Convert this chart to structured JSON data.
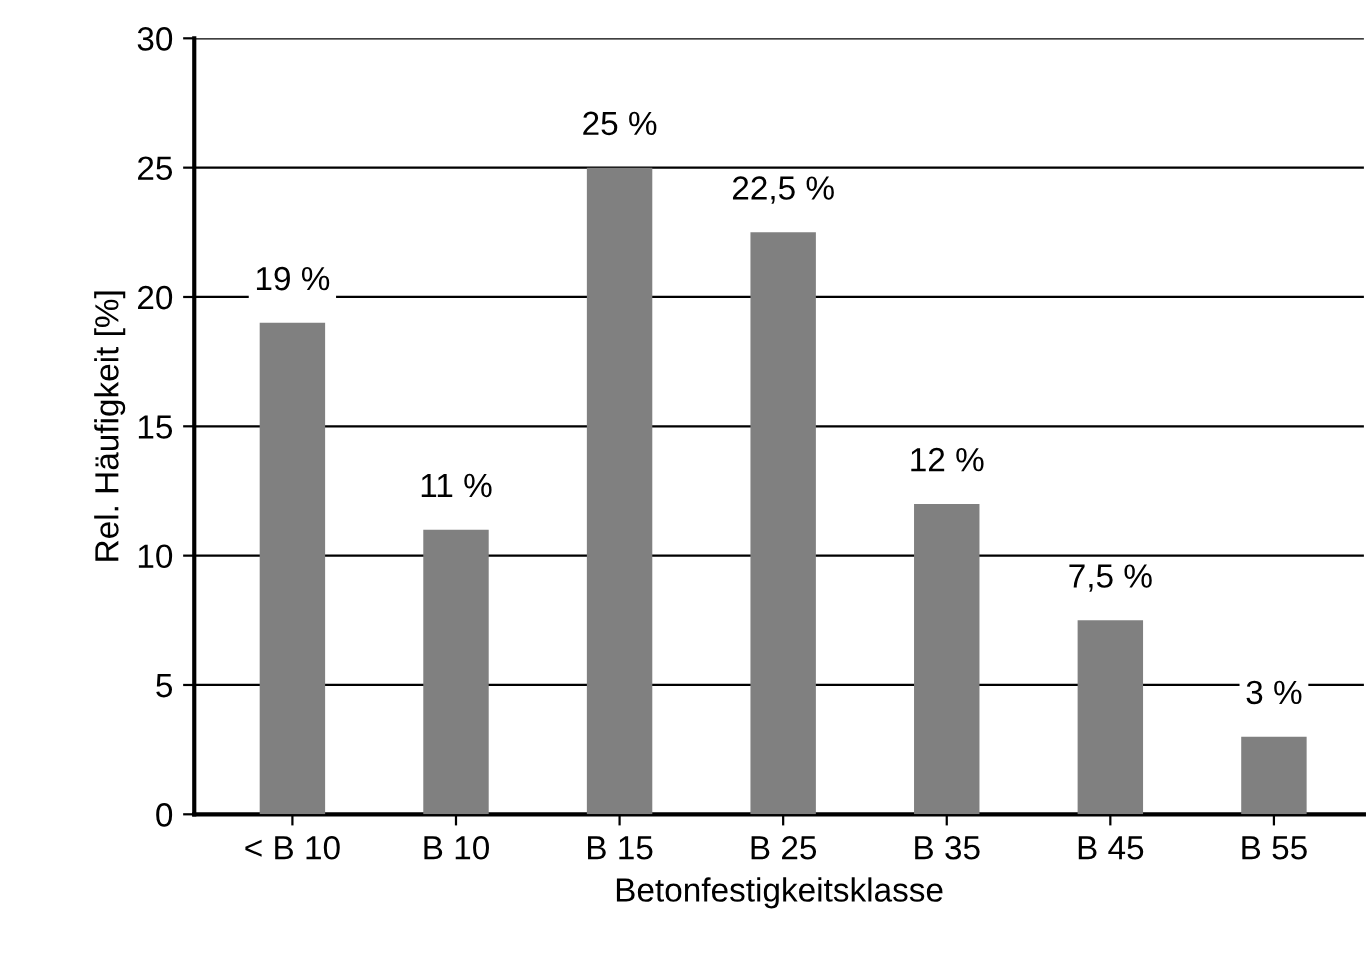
{
  "chart_data": {
    "type": "bar",
    "xlabel": "Betonfestigkeitsklasse",
    "ylabel": "Rel. Häufigkeit [%]",
    "categories": [
      "< B 10",
      "B 10",
      "B 15",
      "B 25",
      "B 35",
      "B 45",
      "B 55"
    ],
    "values": [
      19,
      11,
      25,
      22.5,
      12,
      7.5,
      3
    ],
    "value_labels": [
      "19 %",
      "11 %",
      "25 %",
      "22,5 %",
      "12 %",
      "7,5 %",
      "3 %"
    ],
    "color": "#808080",
    "ylim": [
      0,
      30
    ],
    "yticks": [
      0,
      5,
      10,
      15,
      20,
      25,
      30
    ],
    "grid": "y",
    "legend": false
  }
}
